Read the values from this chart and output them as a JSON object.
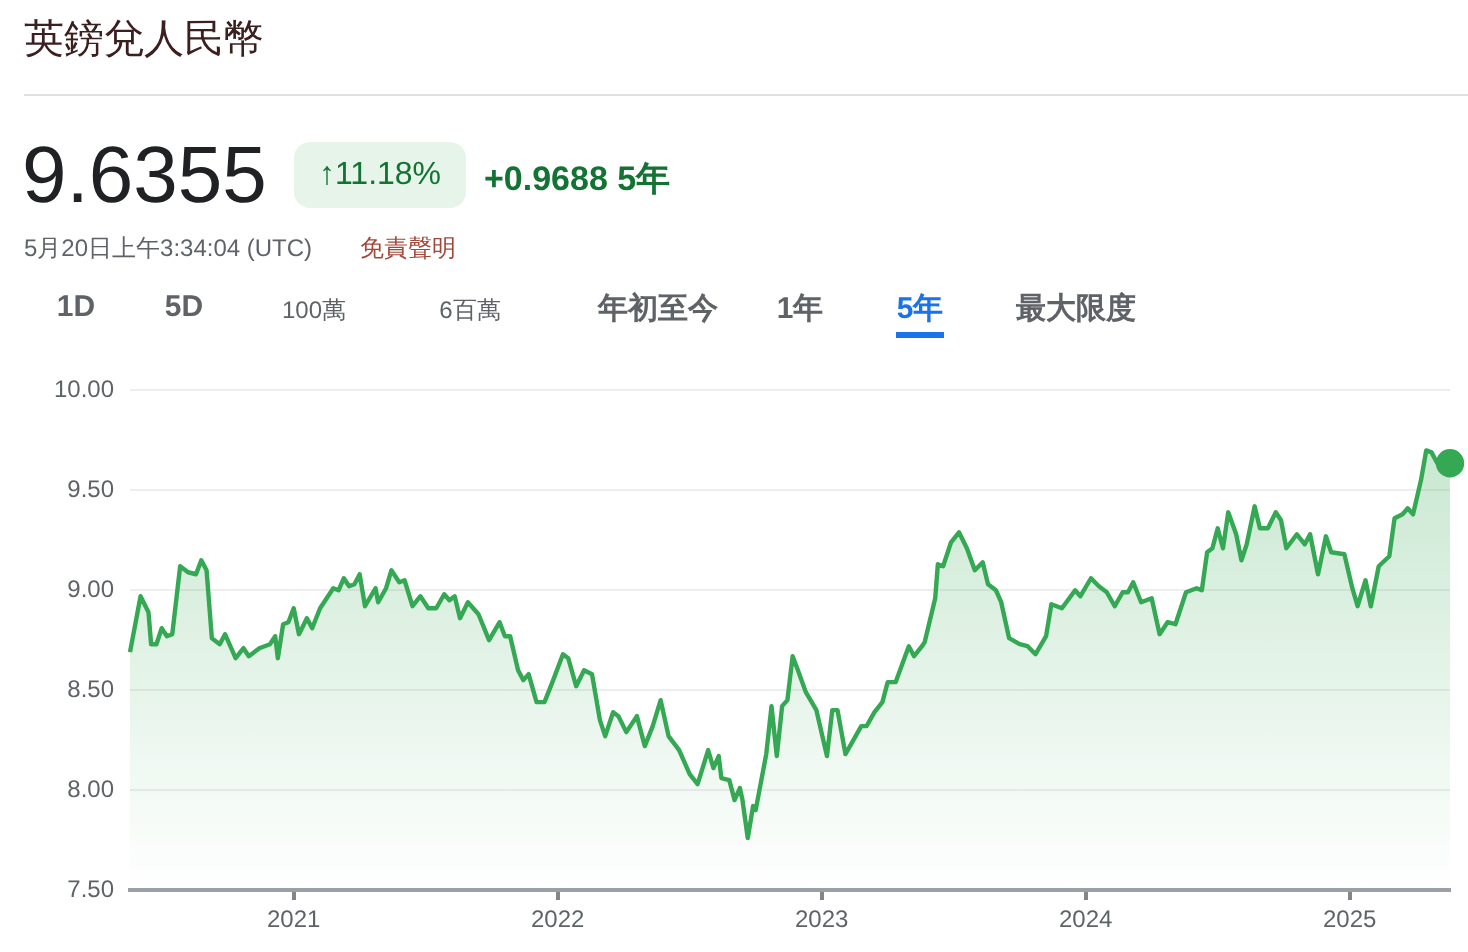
{
  "chart_data": {
    "type": "area",
    "title": "英鎊兌人民幣",
    "annotations": [
      "9.6355",
      "↑11.18%",
      "+0.9688 5年",
      "5月20日上午3:34:04 (UTC)",
      "免責聲明",
      "1D",
      "5D",
      "100萬",
      "6百萬",
      "年初至今",
      "1年",
      "5年",
      "最大限度"
    ],
    "color": "#34a853",
    "x": [
      2020.38,
      2020.42,
      2020.45,
      2020.46,
      2020.48,
      2020.5,
      2020.52,
      2020.54,
      2020.57,
      2020.6,
      2020.63,
      2020.65,
      2020.67,
      2020.69,
      2020.72,
      2020.74,
      2020.78,
      2020.81,
      2020.83,
      2020.87,
      2020.91,
      2020.93,
      2020.94,
      2020.96,
      2020.98,
      2021.0,
      2021.02,
      2021.05,
      2021.07,
      2021.1,
      2021.15,
      2021.17,
      2021.19,
      2021.21,
      2021.23,
      2021.25,
      2021.27,
      2021.31,
      2021.32,
      2021.35,
      2021.37,
      2021.4,
      2021.42,
      2021.45,
      2021.48,
      2021.51,
      2021.54,
      2021.57,
      2021.59,
      2021.61,
      2021.63,
      2021.66,
      2021.7,
      2021.74,
      2021.78,
      2021.8,
      2021.82,
      2021.85,
      2021.87,
      2021.89,
      2021.92,
      2021.95,
      2021.98,
      2022.02,
      2022.04,
      2022.07,
      2022.1,
      2022.13,
      2022.16,
      2022.18,
      2022.21,
      2022.23,
      2022.26,
      2022.3,
      2022.33,
      2022.36,
      2022.39,
      2022.42,
      2022.46,
      2022.5,
      2022.53,
      2022.57,
      2022.59,
      2022.61,
      2022.62,
      2022.65,
      2022.67,
      2022.69,
      2022.7,
      2022.72,
      2022.74,
      2022.75,
      2022.79,
      2022.81,
      2022.83,
      2022.85,
      2022.87,
      2022.89,
      2022.91,
      2022.94,
      2022.98,
      2023.02,
      2023.04,
      2023.06,
      2023.09,
      2023.12,
      2023.15,
      2023.17,
      2023.2,
      2023.23,
      2023.25,
      2023.28,
      2023.33,
      2023.35,
      2023.38,
      2023.39,
      2023.43,
      2023.44,
      2023.46,
      2023.49,
      2023.52,
      2023.55,
      2023.58,
      2023.61,
      2023.63,
      2023.66,
      2023.68,
      2023.71,
      2023.75,
      2023.78,
      2023.81,
      2023.85,
      2023.87,
      2023.91,
      2023.96,
      2023.98,
      2024.02,
      2024.05,
      2024.08,
      2024.11,
      2024.14,
      2024.16,
      2024.18,
      2024.21,
      2024.25,
      2024.28,
      2024.31,
      2024.34,
      2024.38,
      2024.42,
      2024.44,
      2024.46,
      2024.48,
      2024.5,
      2024.52,
      2024.54,
      2024.57,
      2024.59,
      2024.61,
      2024.64,
      2024.66,
      2024.69,
      2024.72,
      2024.74,
      2024.76,
      2024.8,
      2024.83,
      2024.85,
      2024.88,
      2024.91,
      2024.93,
      2024.98,
      2025.01,
      2025.03,
      2025.06,
      2025.08,
      2025.11,
      2025.15,
      2025.17,
      2025.2,
      2025.22,
      2025.24,
      2025.27,
      2025.29,
      2025.31,
      2025.33,
      2025.36,
      2025.38
    ],
    "values": [
      8.69,
      8.97,
      8.89,
      8.73,
      8.73,
      8.81,
      8.77,
      8.78,
      9.12,
      9.09,
      9.08,
      9.15,
      9.1,
      8.76,
      8.73,
      8.78,
      8.66,
      8.71,
      8.67,
      8.71,
      8.73,
      8.77,
      8.66,
      8.83,
      8.84,
      8.91,
      8.78,
      8.86,
      8.81,
      8.91,
      9.01,
      9.0,
      9.06,
      9.02,
      9.03,
      9.08,
      8.92,
      9.01,
      8.94,
      9.01,
      9.1,
      9.04,
      9.05,
      8.92,
      8.97,
      8.91,
      8.91,
      8.98,
      8.95,
      8.97,
      8.86,
      8.94,
      8.88,
      8.75,
      8.84,
      8.77,
      8.77,
      8.6,
      8.55,
      8.58,
      8.44,
      8.44,
      8.54,
      8.68,
      8.66,
      8.52,
      8.6,
      8.58,
      8.35,
      8.27,
      8.39,
      8.37,
      8.29,
      8.37,
      8.22,
      8.32,
      8.45,
      8.27,
      8.2,
      8.08,
      8.03,
      8.2,
      8.11,
      8.17,
      8.06,
      8.05,
      7.95,
      8.01,
      7.95,
      7.76,
      7.92,
      7.9,
      8.18,
      8.42,
      8.17,
      8.42,
      8.45,
      8.67,
      8.6,
      8.49,
      8.4,
      8.17,
      8.4,
      8.4,
      8.18,
      8.25,
      8.32,
      8.32,
      8.39,
      8.44,
      8.54,
      8.54,
      8.72,
      8.67,
      8.72,
      8.74,
      8.96,
      9.13,
      9.12,
      9.24,
      9.29,
      9.21,
      9.1,
      9.14,
      9.03,
      9.0,
      8.94,
      8.76,
      8.73,
      8.72,
      8.68,
      8.77,
      8.93,
      8.91,
      9.0,
      8.97,
      9.06,
      9.02,
      8.99,
      8.92,
      8.99,
      8.99,
      9.04,
      8.94,
      8.96,
      8.78,
      8.84,
      8.83,
      8.99,
      9.01,
      9.0,
      9.19,
      9.21,
      9.31,
      9.21,
      9.39,
      9.28,
      9.15,
      9.23,
      9.42,
      9.31,
      9.31,
      9.39,
      9.35,
      9.21,
      9.28,
      9.23,
      9.28,
      9.08,
      9.27,
      9.19,
      9.18,
      9.01,
      8.92,
      9.05,
      8.92,
      9.12,
      9.17,
      9.36,
      9.38,
      9.41,
      9.38,
      9.55,
      9.7,
      9.69,
      9.64,
      9.59,
      9.6355
    ],
    "xlim": [
      2020.38,
      2025.38
    ],
    "xticks": [
      2021,
      2022,
      2023,
      2024,
      2025
    ],
    "ylim": [
      7.5,
      10
    ],
    "yticks": [
      {
        "value": 7.5,
        "label": "7.50"
      },
      {
        "value": 8,
        "label": "8.00"
      },
      {
        "value": 8.5,
        "label": "8.50"
      },
      {
        "value": 9,
        "label": "9.00"
      },
      {
        "value": 9.5,
        "label": "9.50"
      },
      {
        "value": 10,
        "label": "10.00"
      }
    ],
    "grid": "y"
  }
}
